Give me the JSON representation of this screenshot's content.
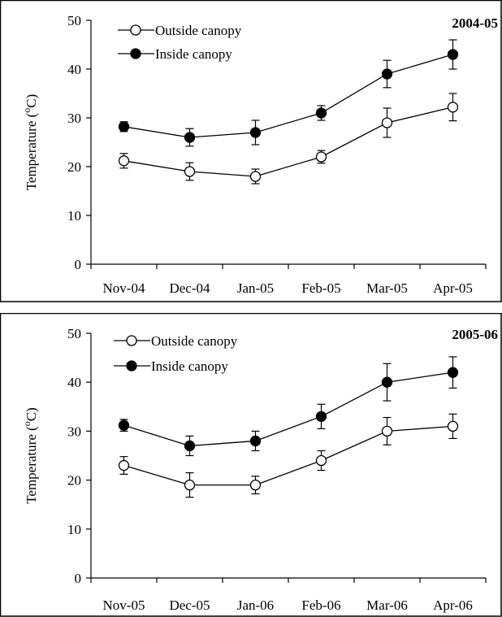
{
  "chart_data": [
    {
      "type": "line",
      "title": "2004-05",
      "ylabel": "Temperature (°C)",
      "ylabel_base": "Temperature (",
      "ylabel_sup": "o",
      "ylabel_end": "C)",
      "xlabel": "",
      "ylim": [
        0,
        50
      ],
      "yticks": [
        0,
        10,
        20,
        30,
        40,
        50
      ],
      "categories": [
        "Nov-04",
        "Dec-04",
        "Jan-05",
        "Feb-05",
        "Mar-05",
        "Apr-05"
      ],
      "series": [
        {
          "name": "Outside canopy",
          "marker": "open-circle",
          "values": [
            21.2,
            19.0,
            18.0,
            22.0,
            29.0,
            32.2
          ],
          "errors": [
            1.5,
            1.8,
            1.5,
            1.3,
            3.0,
            2.8
          ]
        },
        {
          "name": "Inside canopy",
          "marker": "filled-circle",
          "values": [
            28.2,
            26.0,
            27.0,
            31.0,
            39.0,
            43.0
          ],
          "errors": [
            1.0,
            1.8,
            2.5,
            1.5,
            2.8,
            3.0
          ]
        }
      ],
      "legend_position": "top-left",
      "grid": false
    },
    {
      "type": "line",
      "title": "2005-06",
      "ylabel": "Temperature (°C)",
      "ylabel_base": "Temperature (",
      "ylabel_sup": "o",
      "ylabel_end": "C)",
      "xlabel": "",
      "ylim": [
        0,
        50
      ],
      "yticks": [
        0,
        10,
        20,
        30,
        40,
        50
      ],
      "categories": [
        "Nov-05",
        "Dec-05",
        "Jan-06",
        "Feb-06",
        "Mar-06",
        "Apr-06"
      ],
      "series": [
        {
          "name": "Outside canopy",
          "marker": "open-circle",
          "values": [
            23.0,
            19.0,
            19.0,
            24.0,
            30.0,
            31.0
          ],
          "errors": [
            1.8,
            2.5,
            1.8,
            2.0,
            2.8,
            2.5
          ]
        },
        {
          "name": "Inside canopy",
          "marker": "filled-circle",
          "values": [
            31.2,
            27.0,
            28.0,
            33.0,
            40.0,
            42.0
          ],
          "errors": [
            1.2,
            2.0,
            2.0,
            2.5,
            3.8,
            3.2
          ]
        }
      ],
      "legend_position": "top-left",
      "grid": false
    }
  ]
}
